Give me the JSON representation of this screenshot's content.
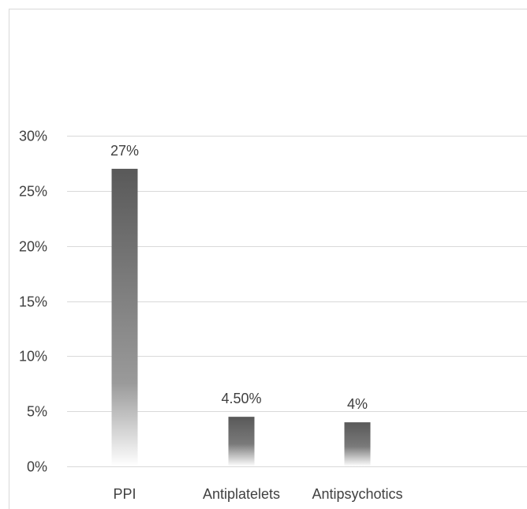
{
  "chart_data": {
    "type": "bar",
    "categories": [
      "PPI",
      "Antiplatelets",
      "Antipsychotics",
      ""
    ],
    "values": [
      27,
      4.5,
      4,
      null
    ],
    "data_labels": [
      "27%",
      "4.50%",
      "4%",
      ""
    ],
    "title": "",
    "xlabel": "",
    "ylabel": "",
    "ylim": [
      0,
      30
    ],
    "yticks": [
      0,
      5,
      10,
      15,
      20,
      25,
      30
    ],
    "ytick_labels": [
      "0%",
      "5%",
      "10%",
      "15%",
      "20%",
      "25%",
      "30%"
    ],
    "grid": true,
    "legend": "none",
    "bar_fill": "gradient",
    "colors": {
      "bar_top": "#595959",
      "bar_bottom": "#ffffff",
      "grid": "#d9d9d9",
      "text": "#404040",
      "border": "#d9d9d9"
    }
  }
}
